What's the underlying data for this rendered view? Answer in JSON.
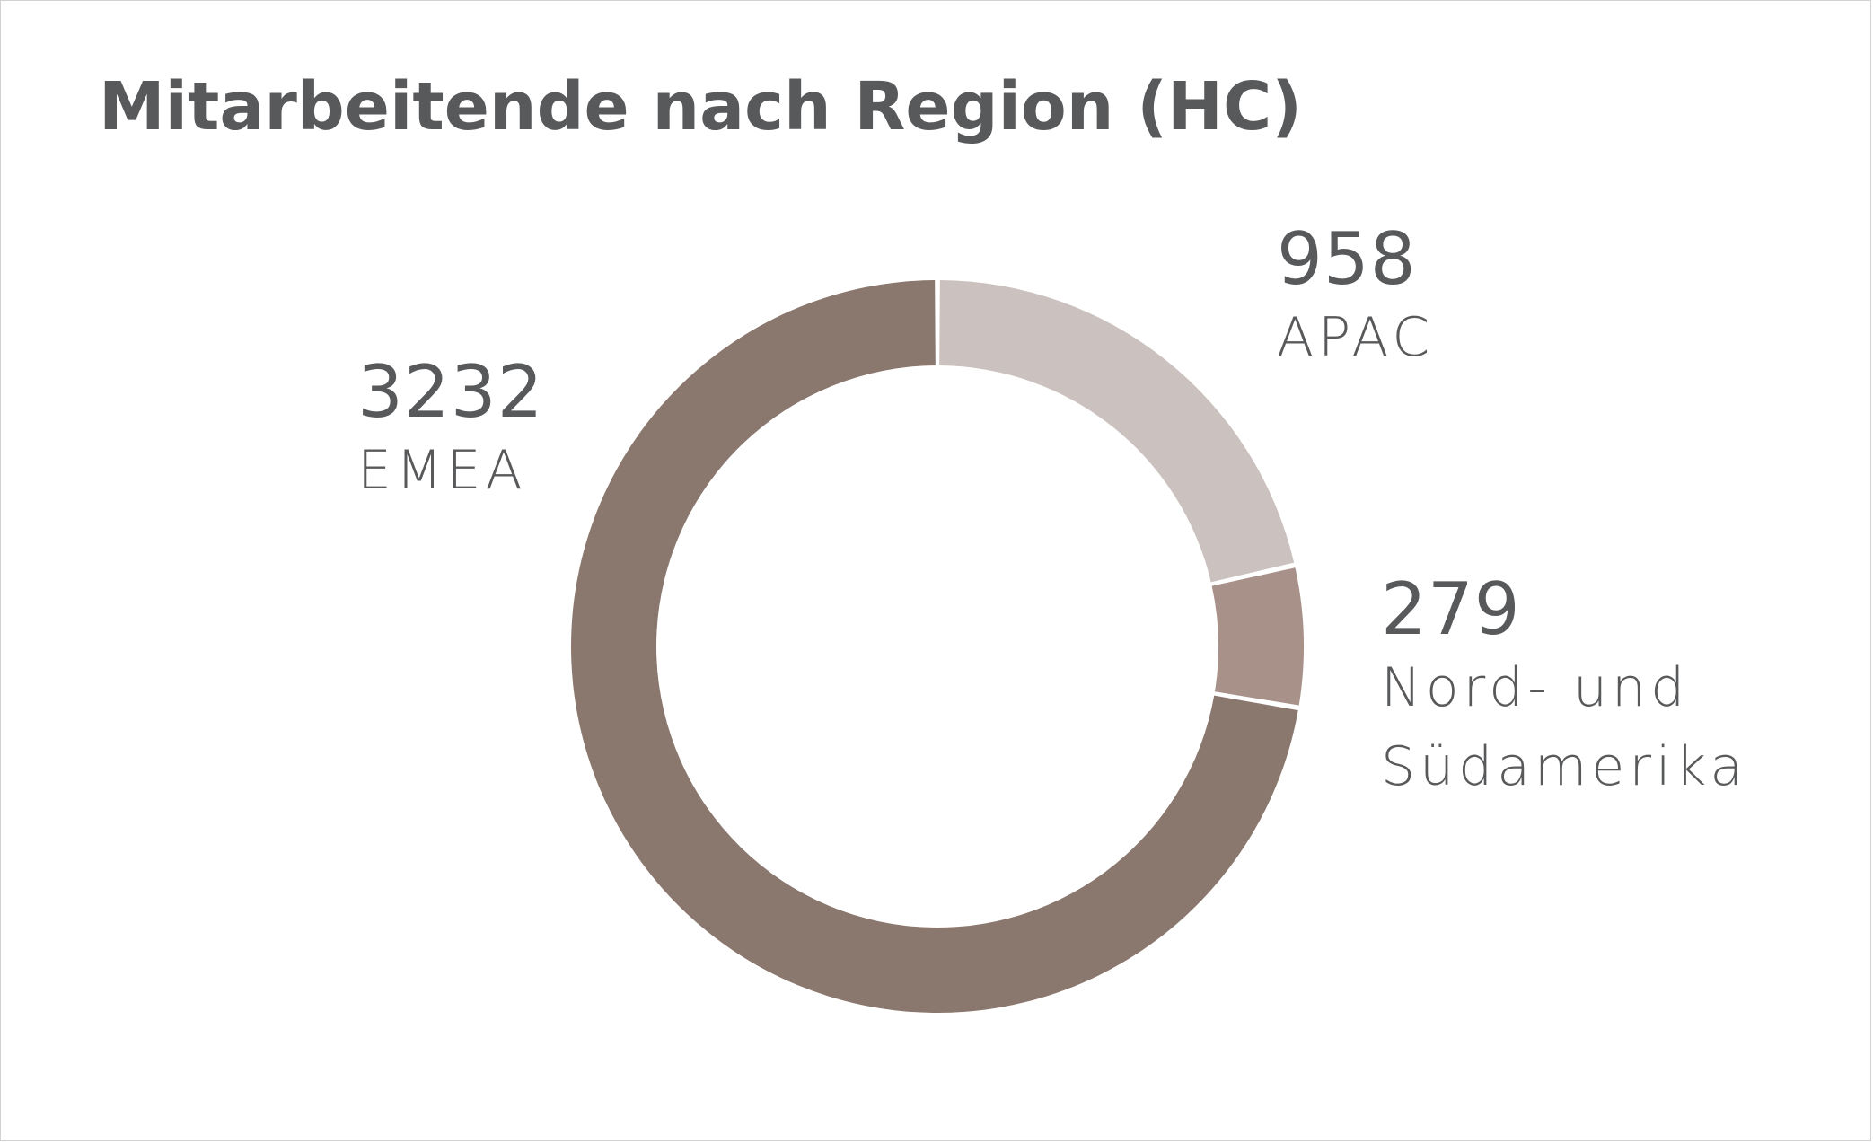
{
  "chart_data": {
    "type": "pie",
    "title": "Mitarbeitende nach Region (HC)",
    "style": "donut",
    "slices": [
      {
        "label": "APAC",
        "value": 958,
        "value_text": "958",
        "label_lines": [
          "APAC"
        ],
        "color": "#cbc1be"
      },
      {
        "label": "Nord- und Südamerika",
        "value": 279,
        "value_text": "279",
        "label_lines": [
          "Nord- und",
          "Südamerika"
        ],
        "color": "#a79189"
      },
      {
        "label": "EMEA",
        "value": 3232,
        "value_text": "3232",
        "label_lines": [
          "EMEA"
        ],
        "color": "#8a776e"
      }
    ],
    "legend": "none"
  },
  "colors": {
    "text": "#58595b",
    "border": "#d2d2d2",
    "background": "#ffffff"
  }
}
